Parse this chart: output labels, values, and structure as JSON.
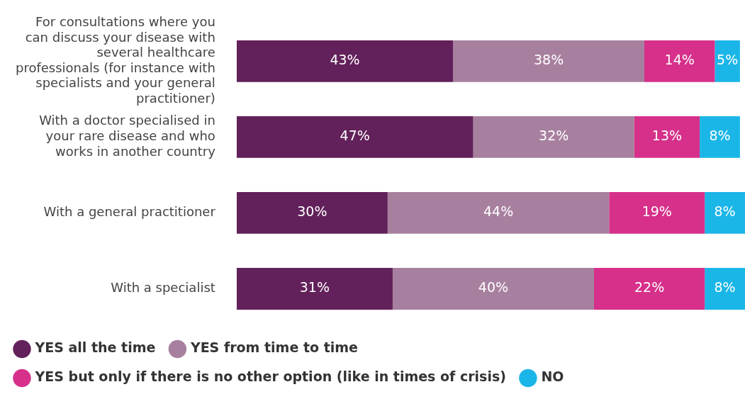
{
  "chart_data": {
    "type": "bar",
    "orientation": "horizontal",
    "stacked": true,
    "legend": "bottom",
    "categories": [
      "For consultations where you can discuss your disease with several healthcare professionals (for instance with specialists and your general practitioner)",
      "With a doctor specialised in your rare disease and who works in another country",
      "With a general practitioner",
      "With a specialist"
    ],
    "series": [
      {
        "name": "YES all the time",
        "color": "#62215a",
        "values": [
          43,
          47,
          30,
          31
        ],
        "value_labels": [
          "43%",
          "47%",
          "30%",
          "31%"
        ]
      },
      {
        "name": "YES from time to time",
        "color": "#a8809f",
        "values": [
          38,
          32,
          44,
          40
        ],
        "value_labels": [
          "38%",
          "32%",
          "44%",
          "40%"
        ]
      },
      {
        "name": "YES but only if there is no other option (like in times of crisis)",
        "color": "#d6308a",
        "values": [
          14,
          13,
          19,
          22
        ],
        "value_labels": [
          "14%",
          "13%",
          "19%",
          "22%"
        ]
      },
      {
        "name": "NO",
        "color": "#1bb6e8",
        "values": [
          5,
          8,
          8,
          8
        ],
        "value_labels": [
          "5%",
          "8%",
          "8%",
          "8%"
        ]
      }
    ]
  }
}
